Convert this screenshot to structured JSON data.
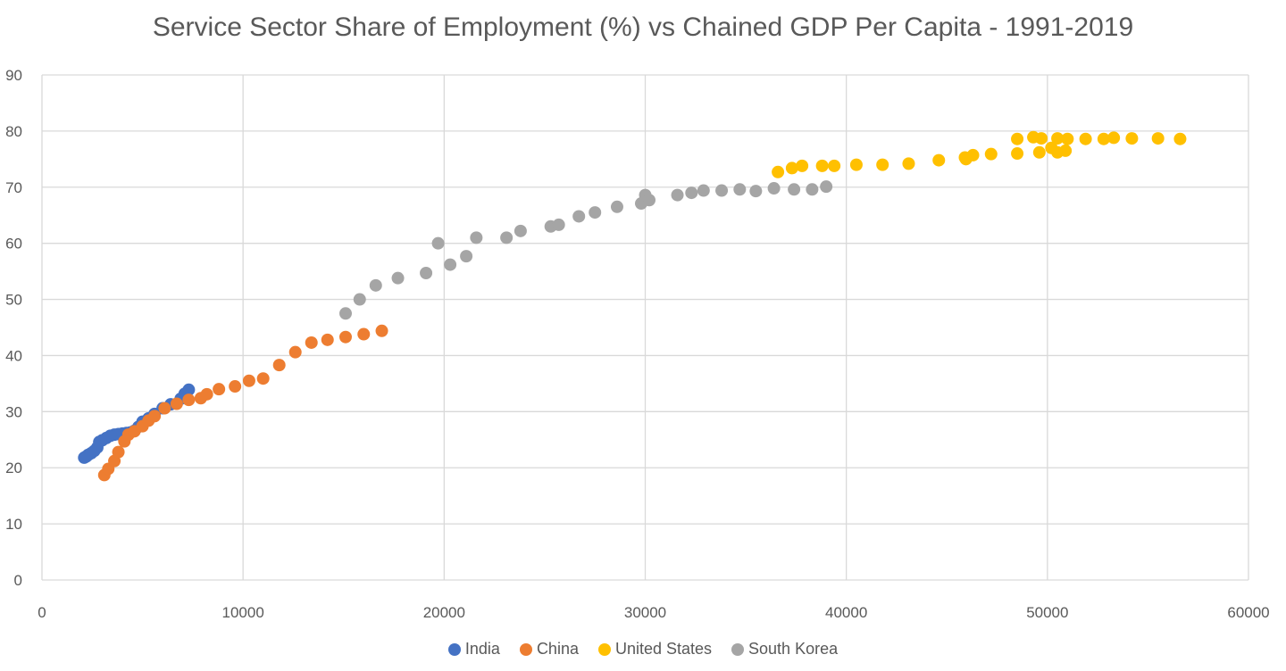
{
  "chart_data": {
    "type": "scatter",
    "title": "Service Sector Share of Employment (%) vs Chained GDP Per Capita - 1991-2019",
    "xlabel": "",
    "ylabel": "",
    "xlim": [
      0,
      60000
    ],
    "ylim": [
      0,
      90
    ],
    "xticks": [
      0,
      10000,
      20000,
      30000,
      40000,
      50000,
      60000
    ],
    "yticks": [
      0,
      10,
      20,
      30,
      40,
      50,
      60,
      70,
      80,
      90
    ],
    "grid": true,
    "legend_position": "bottom",
    "series": [
      {
        "name": "India",
        "color": "#4472C4",
        "points": [
          [
            2100,
            21.8
          ],
          [
            2200,
            22.0
          ],
          [
            2300,
            22.3
          ],
          [
            2450,
            22.6
          ],
          [
            2600,
            23.0
          ],
          [
            2750,
            23.6
          ],
          [
            2850,
            24.6
          ],
          [
            3000,
            24.9
          ],
          [
            3200,
            25.3
          ],
          [
            3400,
            25.7
          ],
          [
            3600,
            25.9
          ],
          [
            3800,
            26.0
          ],
          [
            4000,
            26.1
          ],
          [
            4200,
            26.2
          ],
          [
            4400,
            26.3
          ],
          [
            4600,
            26.6
          ],
          [
            4800,
            27.3
          ],
          [
            5000,
            28.2
          ],
          [
            5300,
            28.8
          ],
          [
            5600,
            29.6
          ],
          [
            6000,
            30.6
          ],
          [
            6400,
            31.3
          ],
          [
            6900,
            32.3
          ],
          [
            7100,
            33.2
          ],
          [
            7300,
            33.9
          ]
        ]
      },
      {
        "name": "China",
        "color": "#ED7D31",
        "points": [
          [
            3100,
            18.7
          ],
          [
            3300,
            19.8
          ],
          [
            3600,
            21.2
          ],
          [
            3800,
            22.8
          ],
          [
            4100,
            24.7
          ],
          [
            4300,
            25.9
          ],
          [
            4600,
            26.5
          ],
          [
            5000,
            27.4
          ],
          [
            5300,
            28.4
          ],
          [
            5600,
            29.2
          ],
          [
            6100,
            30.6
          ],
          [
            6700,
            31.4
          ],
          [
            7300,
            32.1
          ],
          [
            7900,
            32.4
          ],
          [
            8200,
            33.1
          ],
          [
            8800,
            34.0
          ],
          [
            9600,
            34.5
          ],
          [
            10300,
            35.5
          ],
          [
            11000,
            35.9
          ],
          [
            11800,
            38.3
          ],
          [
            12600,
            40.6
          ],
          [
            13400,
            42.3
          ],
          [
            14200,
            42.8
          ],
          [
            15100,
            43.3
          ],
          [
            16000,
            43.8
          ],
          [
            16900,
            44.4
          ]
        ]
      },
      {
        "name": "United States",
        "color": "#FFC000",
        "points": [
          [
            36600,
            72.7
          ],
          [
            37300,
            73.4
          ],
          [
            37800,
            73.8
          ],
          [
            38800,
            73.8
          ],
          [
            39400,
            73.8
          ],
          [
            40500,
            74.0
          ],
          [
            41800,
            74.0
          ],
          [
            43100,
            74.2
          ],
          [
            44600,
            74.8
          ],
          [
            45900,
            75.3
          ],
          [
            45950,
            75.0
          ],
          [
            46300,
            75.7
          ],
          [
            47200,
            75.9
          ],
          [
            48500,
            76.0
          ],
          [
            48500,
            78.6
          ],
          [
            49300,
            78.9
          ],
          [
            49700,
            78.7
          ],
          [
            49600,
            76.2
          ],
          [
            50200,
            77.0
          ],
          [
            50500,
            76.2
          ],
          [
            50500,
            78.7
          ],
          [
            50900,
            76.5
          ],
          [
            51000,
            78.6
          ],
          [
            51900,
            78.6
          ],
          [
            52800,
            78.6
          ],
          [
            53300,
            78.8
          ],
          [
            54200,
            78.7
          ],
          [
            55500,
            78.7
          ],
          [
            56600,
            78.6
          ]
        ]
      },
      {
        "name": "South Korea",
        "color": "#A5A5A5",
        "points": [
          [
            15100,
            47.5
          ],
          [
            15800,
            50.0
          ],
          [
            16600,
            52.5
          ],
          [
            17700,
            53.8
          ],
          [
            19100,
            54.7
          ],
          [
            19700,
            60.0
          ],
          [
            20300,
            56.2
          ],
          [
            21100,
            57.7
          ],
          [
            21600,
            61.0
          ],
          [
            23100,
            61.0
          ],
          [
            23800,
            62.2
          ],
          [
            25300,
            63.0
          ],
          [
            25700,
            63.3
          ],
          [
            26700,
            64.8
          ],
          [
            27500,
            65.5
          ],
          [
            28600,
            66.5
          ],
          [
            29800,
            67.1
          ],
          [
            30000,
            68.6
          ],
          [
            30200,
            67.7
          ],
          [
            31600,
            68.6
          ],
          [
            32300,
            69.0
          ],
          [
            32900,
            69.4
          ],
          [
            33800,
            69.4
          ],
          [
            34700,
            69.6
          ],
          [
            35500,
            69.3
          ],
          [
            36400,
            69.8
          ],
          [
            37400,
            69.6
          ],
          [
            38300,
            69.6
          ],
          [
            39000,
            70.1
          ]
        ]
      }
    ]
  }
}
